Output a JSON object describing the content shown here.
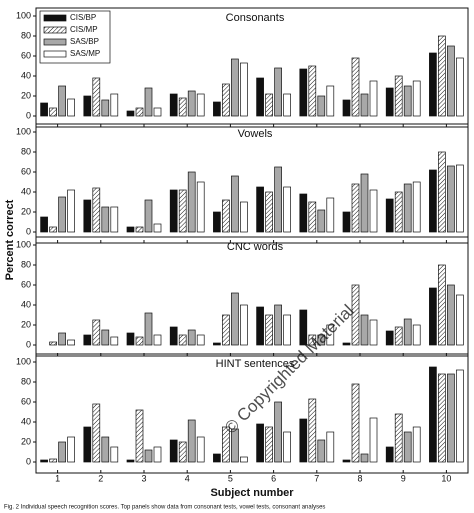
{
  "chart_data": [
    {
      "type": "bar",
      "title": "Consonants",
      "y_label": "Percent correct",
      "ylim": [
        -11,
        108
      ],
      "yticks": [
        0,
        20,
        40,
        60,
        80,
        100
      ],
      "series": [
        {
          "name": "CIS/BP",
          "color": "#111111",
          "values": [
            13,
            20,
            5,
            22,
            14,
            38,
            47,
            16,
            28,
            63
          ]
        },
        {
          "name": "CIS/MP",
          "color": "#ffffff",
          "pattern": "hatch",
          "values": [
            8,
            38,
            8,
            18,
            32,
            22,
            50,
            58,
            40,
            80
          ]
        },
        {
          "name": "SAS/BP",
          "color": "#a8a8a8",
          "values": [
            30,
            16,
            28,
            25,
            57,
            48,
            20,
            22,
            30,
            70
          ]
        },
        {
          "name": "SAS/MP",
          "color": "#ffffff",
          "values": [
            17,
            22,
            8,
            22,
            53,
            22,
            30,
            35,
            35,
            58
          ]
        }
      ]
    },
    {
      "type": "bar",
      "title": "Vowels",
      "ylim": [
        -11,
        108
      ],
      "yticks": [
        0,
        20,
        40,
        60,
        80,
        100
      ],
      "series": [
        {
          "color": "#111111",
          "values": [
            15,
            32,
            5,
            42,
            20,
            45,
            38,
            20,
            33,
            62
          ]
        },
        {
          "color": "#ffffff",
          "pattern": "hatch",
          "values": [
            5,
            44,
            5,
            42,
            32,
            40,
            30,
            48,
            40,
            80
          ]
        },
        {
          "color": "#a8a8a8",
          "values": [
            35,
            25,
            32,
            60,
            56,
            65,
            22,
            58,
            48,
            66
          ]
        },
        {
          "color": "#ffffff",
          "values": [
            42,
            25,
            8,
            50,
            30,
            45,
            34,
            42,
            50,
            67
          ]
        }
      ]
    },
    {
      "type": "bar",
      "title": "CNC words",
      "ylim": [
        -11,
        108
      ],
      "yticks": [
        0,
        20,
        40,
        60,
        80,
        100
      ],
      "series": [
        {
          "color": "#111111",
          "values": [
            0,
            10,
            12,
            18,
            2,
            38,
            35,
            2,
            14,
            57
          ]
        },
        {
          "color": "#ffffff",
          "pattern": "hatch",
          "values": [
            3,
            25,
            8,
            10,
            30,
            30,
            10,
            60,
            18,
            80
          ]
        },
        {
          "color": "#a8a8a8",
          "values": [
            12,
            15,
            32,
            15,
            52,
            40,
            10,
            30,
            26,
            60
          ]
        },
        {
          "color": "#ffffff",
          "values": [
            5,
            8,
            10,
            10,
            40,
            30,
            20,
            25,
            20,
            50
          ]
        }
      ]
    },
    {
      "type": "bar",
      "title": "HINT sentences",
      "x_label": "Subject number",
      "categories": [
        "1",
        "2",
        "3",
        "4",
        "5",
        "6",
        "7",
        "8",
        "9",
        "10"
      ],
      "ylim": [
        -11,
        108
      ],
      "yticks": [
        0,
        20,
        40,
        60,
        80,
        100
      ],
      "series": [
        {
          "color": "#111111",
          "values": [
            2,
            35,
            2,
            22,
            8,
            38,
            43,
            2,
            15,
            95
          ]
        },
        {
          "color": "#ffffff",
          "pattern": "hatch",
          "values": [
            3,
            58,
            52,
            20,
            35,
            35,
            63,
            78,
            48,
            88
          ]
        },
        {
          "color": "#a8a8a8",
          "values": [
            20,
            25,
            12,
            42,
            33,
            60,
            22,
            8,
            30,
            88
          ]
        },
        {
          "color": "#ffffff",
          "values": [
            25,
            15,
            15,
            25,
            5,
            30,
            30,
            44,
            35,
            92
          ]
        }
      ]
    }
  ],
  "watermark": "© Copyrighted Material",
  "caption": "Fig. 2 Individual speech recognition scores. Top panels show data from consonant tests, vowel tests, consonant analyses"
}
